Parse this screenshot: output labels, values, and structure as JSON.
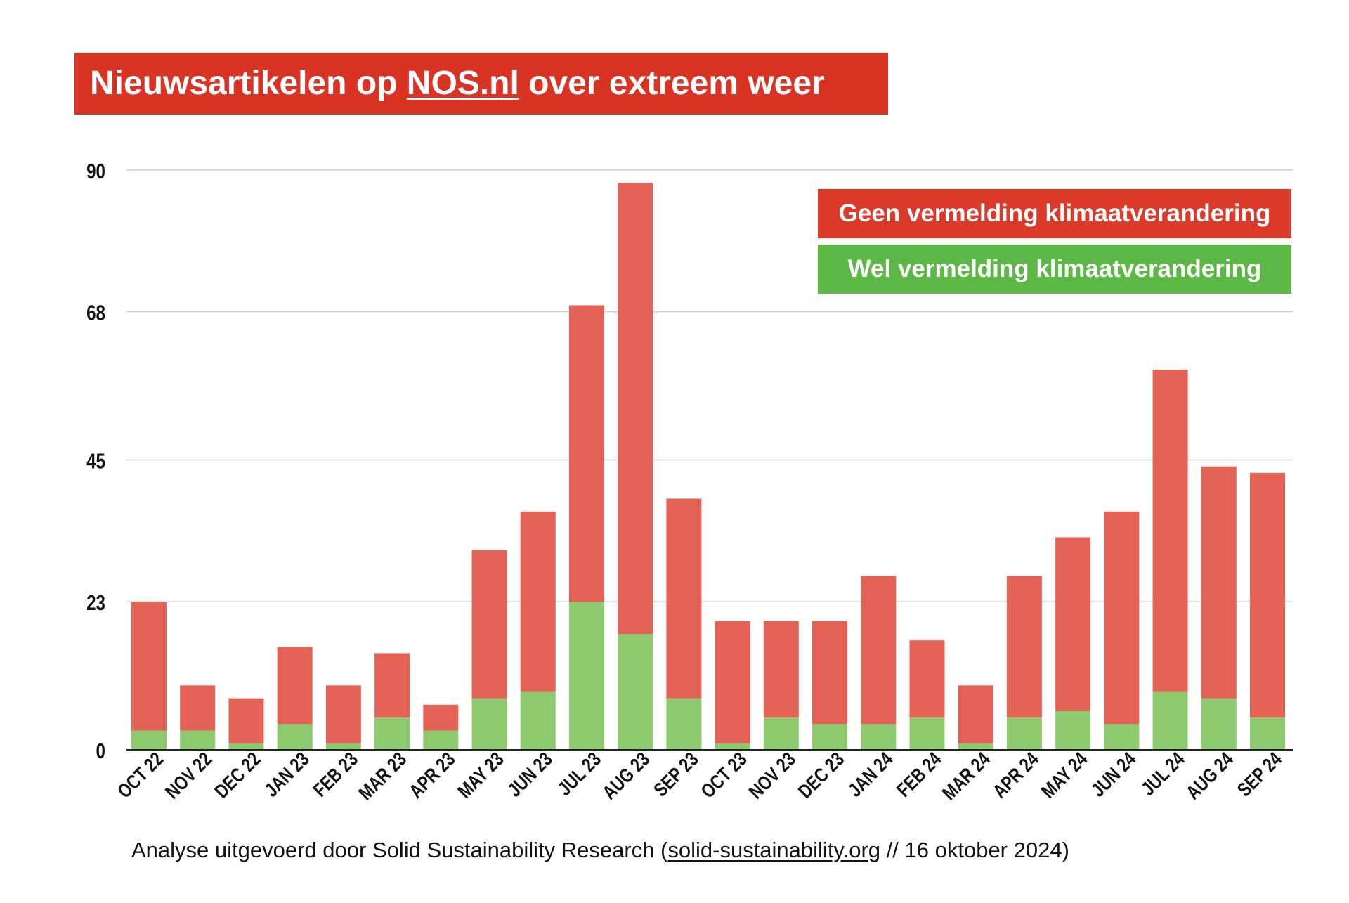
{
  "title": {
    "prefix": "Nieuwsartikelen op ",
    "link": "NOS.nl",
    "suffix": " over extreem weer"
  },
  "legend": {
    "red_label": "Geen vermelding klimaatverandering",
    "green_label": "Wel vermelding klimaatverandering",
    "red_color": "#e36255",
    "green_color": "#8dc96e",
    "red_box_color": "#db3a2b",
    "green_box_color": "#5cb844"
  },
  "footnote": {
    "prefix": "Analyse uitgevoerd door Solid Sustainability Research (",
    "link": "solid-sustainability.org",
    "suffix": " // 16 oktober 2024)"
  },
  "chart_data": {
    "type": "bar",
    "stacked": true,
    "title": "Nieuwsartikelen op NOS.nl over extreem weer",
    "xlabel": "",
    "ylabel": "",
    "ylim": [
      0,
      90
    ],
    "yticks": [
      0,
      23,
      45,
      68,
      90
    ],
    "grid": true,
    "legend_position": "top-right",
    "categories": [
      "OCT 22",
      "NOV 22",
      "DEC 22",
      "JAN 23",
      "FEB 23",
      "MAR 23",
      "APR 23",
      "MAY 23",
      "JUN 23",
      "JUL 23",
      "AUG 23",
      "SEP 23",
      "OCT 23",
      "NOV 23",
      "DEC 23",
      "JAN 24",
      "FEB 24",
      "MAR 24",
      "APR 24",
      "MAY 24",
      "JUN 24",
      "JUL 24",
      "AUG 24",
      "SEP 24"
    ],
    "series": [
      {
        "name": "Wel vermelding klimaatverandering",
        "color": "#8dc96e",
        "values": [
          3,
          3,
          1,
          4,
          1,
          5,
          3,
          8,
          9,
          23,
          18,
          8,
          1,
          5,
          4,
          4,
          5,
          1,
          5,
          6,
          4,
          9,
          8,
          5
        ]
      },
      {
        "name": "Geen vermelding klimaatverandering",
        "color": "#e36255",
        "values": [
          20,
          7,
          7,
          12,
          9,
          10,
          4,
          23,
          28,
          46,
          70,
          31,
          19,
          15,
          16,
          23,
          12,
          9,
          22,
          27,
          33,
          50,
          36,
          38
        ]
      }
    ]
  }
}
